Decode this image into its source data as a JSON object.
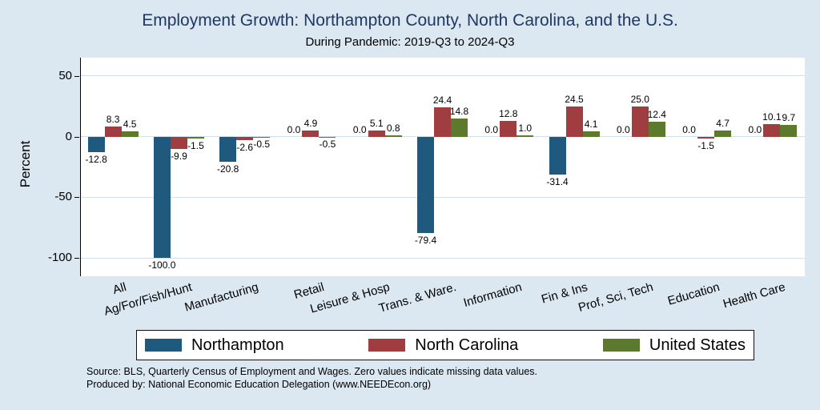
{
  "title": "Employment Growth: Northampton County, North Carolina, and the U.S.",
  "subtitle": "During Pandemic: 2019-Q3 to 2024-Q3",
  "colors": {
    "background": "#dbe7f1",
    "title": "#1f3864",
    "northampton": "#1f5a7e",
    "north_carolina": "#a03d40",
    "united_states": "#5d7a2c"
  },
  "chart_data": {
    "type": "bar",
    "categories": [
      "All",
      "Ag/For/Fish/Hunt",
      "Manufacturing",
      "Retail",
      "Leisure & Hosp",
      "Trans. & Ware.",
      "Information",
      "Fin & Ins",
      "Prof, Sci, Tech",
      "Education",
      "Health Care"
    ],
    "series": [
      {
        "name": "Northampton",
        "color": "#1f5a7e",
        "values": [
          -12.8,
          -100.0,
          -20.8,
          0.0,
          0.0,
          -79.4,
          0.0,
          -31.4,
          0.0,
          0.0,
          0.0
        ]
      },
      {
        "name": "North Carolina",
        "color": "#a03d40",
        "values": [
          8.3,
          -9.9,
          -2.6,
          4.9,
          5.1,
          24.4,
          12.8,
          24.5,
          25.0,
          -1.5,
          10.1
        ]
      },
      {
        "name": "United States",
        "color": "#5d7a2c",
        "values": [
          4.5,
          -1.5,
          -0.5,
          -0.5,
          0.8,
          14.8,
          1.0,
          4.1,
          12.4,
          4.7,
          9.7
        ]
      }
    ],
    "title": "Employment Growth: Northampton County, North Carolina, and the U.S.",
    "subtitle": "During Pandemic: 2019-Q3 to 2024-Q3",
    "xlabel": "",
    "ylabel": "Percent",
    "yticks": [
      50,
      0,
      -50,
      -100
    ],
    "ylim": [
      -115,
      65
    ],
    "grid": true,
    "legend_position": "bottom",
    "value_labels_format": "one_decimal"
  },
  "source_line1": "Source: BLS, Quarterly Census of Employment and Wages. Zero values indicate missing data values.",
  "source_line2": "Produced by: National Economic Education Delegation (www.NEEDEcon.org)"
}
